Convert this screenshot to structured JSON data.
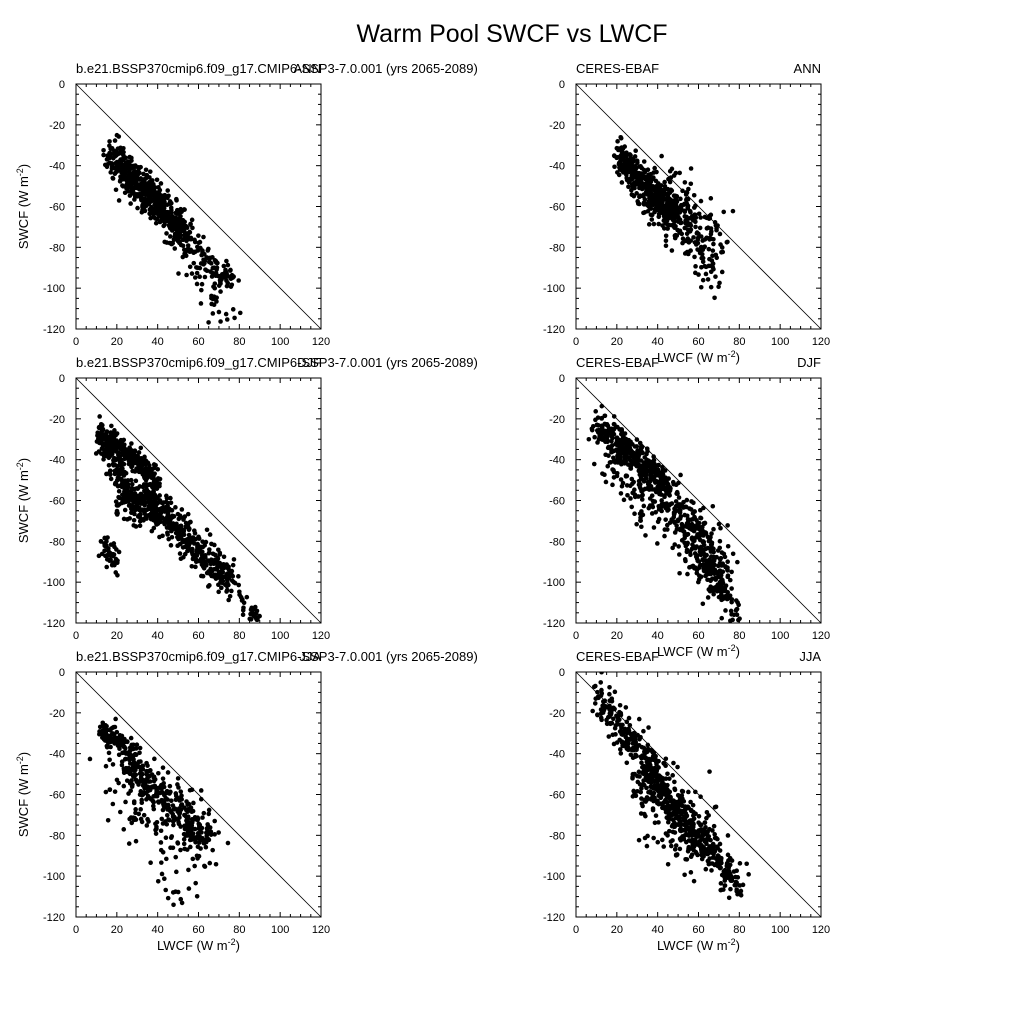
{
  "figure": {
    "title": "Warm Pool SWCF vs LWCF"
  },
  "chart_data": [
    {
      "type": "scatter",
      "left_label": "b.e21.BSSP370cmip6.f09_g17.CMIP6-SSP3-7.0.001 (yrs 2065-2089)",
      "right_label": "ANN",
      "xlabel": "",
      "ylabel": "SWCF (W m-2)",
      "xlim": [
        0,
        120
      ],
      "ylim": [
        -120,
        0
      ],
      "xticks": [
        "0",
        "20",
        "40",
        "60",
        "80",
        "100",
        "120"
      ],
      "yticks": [
        "0",
        "-20",
        "-40",
        "-60",
        "-80",
        "-100",
        "-120"
      ],
      "reference_line": "y = -x",
      "clusters": [
        {
          "x": [
            18,
            52
          ],
          "y": [
            -35,
            -72
          ],
          "spread": 5,
          "n": 520
        },
        {
          "x": [
            48,
            76
          ],
          "y": [
            -68,
            -98
          ],
          "spread": 5,
          "n": 150
        },
        {
          "x": [
            55,
            78
          ],
          "y": [
            -92,
            -116
          ],
          "spread": 4,
          "n": 30
        }
      ]
    },
    {
      "type": "scatter",
      "left_label": "CERES-EBAF",
      "right_label": "ANN",
      "xlabel": "LWCF (W m-2)",
      "ylabel": "",
      "xlim": [
        0,
        120
      ],
      "ylim": [
        -120,
        0
      ],
      "xticks": [
        "0",
        "20",
        "40",
        "60",
        "80",
        "100",
        "120"
      ],
      "yticks": [
        "0",
        "-20",
        "-40",
        "-60",
        "-80",
        "-100",
        "-120"
      ],
      "reference_line": "y = -x",
      "clusters": [
        {
          "x": [
            20,
            50
          ],
          "y": [
            -35,
            -65
          ],
          "spread": 4,
          "n": 450
        },
        {
          "x": [
            38,
            68
          ],
          "y": [
            -52,
            -80
          ],
          "spread": 8,
          "n": 220
        },
        {
          "x": [
            50,
            70
          ],
          "y": [
            -72,
            -96
          ],
          "spread": 6,
          "n": 40
        },
        {
          "x": [
            30,
            40
          ],
          "y": [
            -52,
            -70
          ],
          "spread": 4,
          "n": 20
        }
      ]
    },
    {
      "type": "scatter",
      "left_label": "b.e21.BSSP370cmip6.f09_g17.CMIP6-SSP3-7.0.001 (yrs 2065-2089)",
      "right_label": "DJF",
      "xlabel": "",
      "ylabel": "SWCF (W m-2)",
      "xlim": [
        0,
        120
      ],
      "ylim": [
        -120,
        0
      ],
      "xticks": [
        "0",
        "20",
        "40",
        "60",
        "80",
        "100",
        "120"
      ],
      "yticks": [
        "0",
        "-20",
        "-40",
        "-60",
        "-80",
        "-100",
        "-120"
      ],
      "reference_line": "y = -x",
      "clusters": [
        {
          "x": [
            11,
            40
          ],
          "y": [
            -25,
            -50
          ],
          "spread": 3,
          "n": 260
        },
        {
          "x": [
            12,
            30
          ],
          "y": [
            -28,
            -65
          ],
          "spread": 4,
          "n": 200
        },
        {
          "x": [
            30,
            75
          ],
          "y": [
            -55,
            -98
          ],
          "spread": 5,
          "n": 380
        },
        {
          "x": [
            20,
            45
          ],
          "y": [
            -62,
            -66
          ],
          "spread": 4,
          "n": 90
        },
        {
          "x": [
            12,
            22
          ],
          "y": [
            -80,
            -94
          ],
          "spread": 3,
          "n": 40
        },
        {
          "x": [
            70,
            90
          ],
          "y": [
            -95,
            -120
          ],
          "spread": 3,
          "n": 50
        }
      ]
    },
    {
      "type": "scatter",
      "left_label": "CERES-EBAF",
      "right_label": "DJF",
      "xlabel": "LWCF (W m-2)",
      "ylabel": "",
      "xlim": [
        0,
        120
      ],
      "ylim": [
        -120,
        0
      ],
      "xticks": [
        "0",
        "20",
        "40",
        "60",
        "80",
        "100",
        "120"
      ],
      "yticks": [
        "0",
        "-20",
        "-40",
        "-60",
        "-80",
        "-100",
        "-120"
      ],
      "reference_line": "y = -x",
      "clusters": [
        {
          "x": [
            10,
            45
          ],
          "y": [
            -22,
            -55
          ],
          "spread": 4,
          "n": 350
        },
        {
          "x": [
            15,
            40
          ],
          "y": [
            -35,
            -70
          ],
          "spread": 7,
          "n": 120
        },
        {
          "x": [
            45,
            72
          ],
          "y": [
            -60,
            -100
          ],
          "spread": 8,
          "n": 320
        },
        {
          "x": [
            62,
            80
          ],
          "y": [
            -90,
            -118
          ],
          "spread": 4,
          "n": 60
        }
      ]
    },
    {
      "type": "scatter",
      "left_label": "b.e21.BSSP370cmip6.f09_g17.CMIP6-SSP3-7.0.001 (yrs 2065-2089)",
      "right_label": "JJA",
      "xlabel": "LWCF (W m-2)",
      "ylabel": "SWCF (W m-2)",
      "xlim": [
        0,
        120
      ],
      "ylim": [
        -120,
        0
      ],
      "xticks": [
        "0",
        "20",
        "40",
        "60",
        "80",
        "100",
        "120"
      ],
      "yticks": [
        "0",
        "-20",
        "-40",
        "-60",
        "-80",
        "-100",
        "-120"
      ],
      "reference_line": "y = -x",
      "clusters": [
        {
          "x": [
            12,
            30
          ],
          "y": [
            -27,
            -42
          ],
          "spread": 3,
          "n": 120
        },
        {
          "x": [
            25,
            65
          ],
          "y": [
            -45,
            -80
          ],
          "spread": 5,
          "n": 230
        },
        {
          "x": [
            18,
            65
          ],
          "y": [
            -55,
            -90
          ],
          "spread": 10,
          "n": 160
        },
        {
          "x": [
            40,
            52
          ],
          "y": [
            -98,
            -112
          ],
          "spread": 3,
          "n": 10
        }
      ]
    },
    {
      "type": "scatter",
      "left_label": "CERES-EBAF",
      "right_label": "JJA",
      "xlabel": "LWCF (W m-2)",
      "ylabel": "",
      "xlim": [
        0,
        120
      ],
      "ylim": [
        -120,
        0
      ],
      "xticks": [
        "0",
        "20",
        "40",
        "60",
        "80",
        "100",
        "120"
      ],
      "yticks": [
        "0",
        "-20",
        "-40",
        "-60",
        "-80",
        "-100",
        "-120"
      ],
      "reference_line": "y = -x",
      "clusters": [
        {
          "x": [
            10,
            40
          ],
          "y": [
            -12,
            -50
          ],
          "spread": 5,
          "n": 200
        },
        {
          "x": [
            35,
            80
          ],
          "y": [
            -50,
            -105
          ],
          "spread": 5,
          "n": 380
        },
        {
          "x": [
            30,
            65
          ],
          "y": [
            -55,
            -85
          ],
          "spread": 10,
          "n": 200
        }
      ]
    }
  ]
}
